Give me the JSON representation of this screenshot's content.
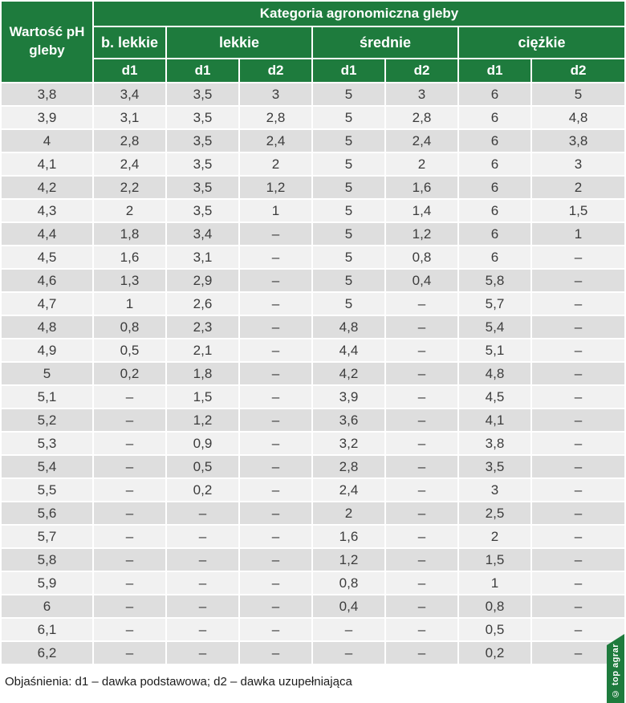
{
  "chart_data": {
    "type": "table",
    "title": "Kategoria agronomiczna gleby",
    "ph_column_label": "Wartość pH gleby",
    "groups": [
      {
        "label": "b. lekkie",
        "cols": [
          "d1"
        ]
      },
      {
        "label": "lekkie",
        "cols": [
          "d1",
          "d2"
        ]
      },
      {
        "label": "średnie",
        "cols": [
          "d1",
          "d2"
        ]
      },
      {
        "label": "ciężkie",
        "cols": [
          "d1",
          "d2"
        ]
      }
    ],
    "rows": [
      [
        "3,8",
        "3,4",
        "3,5",
        "3",
        "5",
        "3",
        "6",
        "5"
      ],
      [
        "3,9",
        "3,1",
        "3,5",
        "2,8",
        "5",
        "2,8",
        "6",
        "4,8"
      ],
      [
        "4",
        "2,8",
        "3,5",
        "2,4",
        "5",
        "2,4",
        "6",
        "3,8"
      ],
      [
        "4,1",
        "2,4",
        "3,5",
        "2",
        "5",
        "2",
        "6",
        "3"
      ],
      [
        "4,2",
        "2,2",
        "3,5",
        "1,2",
        "5",
        "1,6",
        "6",
        "2"
      ],
      [
        "4,3",
        "2",
        "3,5",
        "1",
        "5",
        "1,4",
        "6",
        "1,5"
      ],
      [
        "4,4",
        "1,8",
        "3,4",
        "–",
        "5",
        "1,2",
        "6",
        "1"
      ],
      [
        "4,5",
        "1,6",
        "3,1",
        "–",
        "5",
        "0,8",
        "6",
        "–"
      ],
      [
        "4,6",
        "1,3",
        "2,9",
        "–",
        "5",
        "0,4",
        "5,8",
        "–"
      ],
      [
        "4,7",
        "1",
        "2,6",
        "–",
        "5",
        "–",
        "5,7",
        "–"
      ],
      [
        "4,8",
        "0,8",
        "2,3",
        "–",
        "4,8",
        "–",
        "5,4",
        "–"
      ],
      [
        "4,9",
        "0,5",
        "2,1",
        "–",
        "4,4",
        "–",
        "5,1",
        "–"
      ],
      [
        "5",
        "0,2",
        "1,8",
        "–",
        "4,2",
        "–",
        "4,8",
        "–"
      ],
      [
        "5,1",
        "–",
        "1,5",
        "–",
        "3,9",
        "–",
        "4,5",
        "–"
      ],
      [
        "5,2",
        "–",
        "1,2",
        "–",
        "3,6",
        "–",
        "4,1",
        "–"
      ],
      [
        "5,3",
        "–",
        "0,9",
        "–",
        "3,2",
        "–",
        "3,8",
        "–"
      ],
      [
        "5,4",
        "–",
        "0,5",
        "–",
        "2,8",
        "–",
        "3,5",
        "–"
      ],
      [
        "5,5",
        "–",
        "0,2",
        "–",
        "2,4",
        "–",
        "3",
        "–"
      ],
      [
        "5,6",
        "–",
        "–",
        "–",
        "2",
        "–",
        "2,5",
        "–"
      ],
      [
        "5,7",
        "–",
        "–",
        "–",
        "1,6",
        "–",
        "2",
        "–"
      ],
      [
        "5,8",
        "–",
        "–",
        "–",
        "1,2",
        "–",
        "1,5",
        "–"
      ],
      [
        "5,9",
        "–",
        "–",
        "–",
        "0,8",
        "–",
        "1",
        "–"
      ],
      [
        "6",
        "–",
        "–",
        "–",
        "0,4",
        "–",
        "0,8",
        "–"
      ],
      [
        "6,1",
        "–",
        "–",
        "–",
        "–",
        "–",
        "0,5",
        "–"
      ],
      [
        "6,2",
        "–",
        "–",
        "–",
        "–",
        "–",
        "0,2",
        "–"
      ]
    ]
  },
  "footer": {
    "note": "Objaśnienia: d1 – dawka podstawowa; d2 – dawka uzupełniająca"
  },
  "watermark": {
    "text": "© top agrar"
  },
  "colors": {
    "header_green": "#1e7b3d",
    "row_dark": "#dedede",
    "row_light": "#f1f1f1",
    "body_text": "#3c3c3c"
  }
}
